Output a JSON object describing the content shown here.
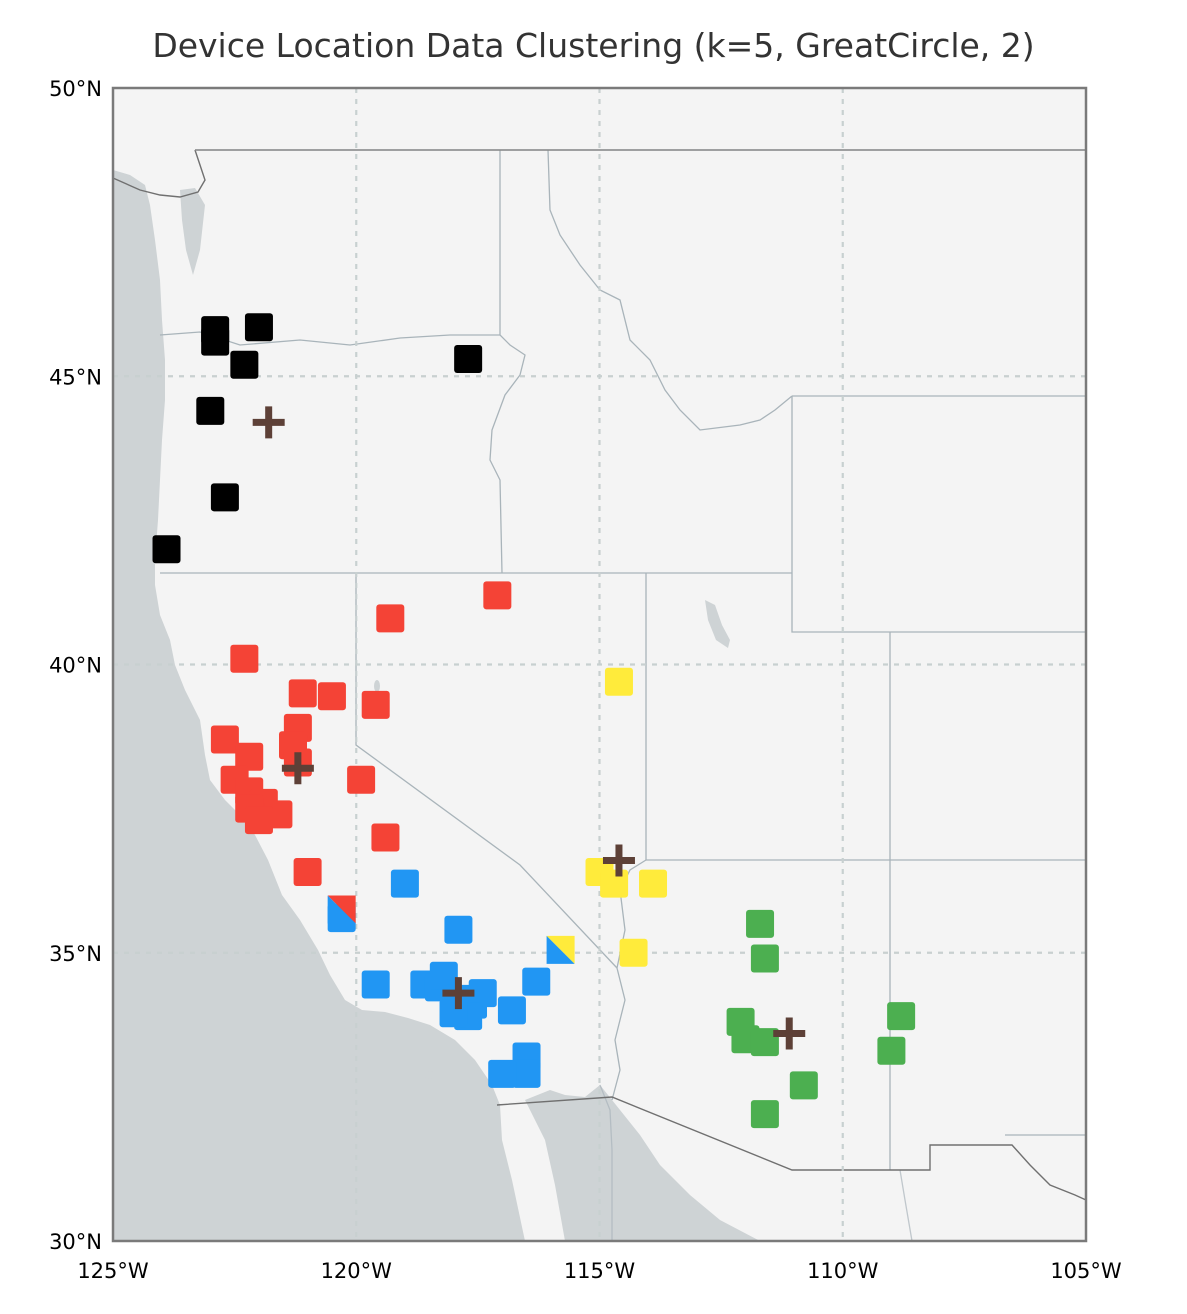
{
  "title": "Device Location Data Clustering (k=5, GreatCircle, 2)",
  "colors": {
    "ocean": "#ced3d5",
    "land": "#f4f4f4",
    "state_border": "#a9b4ba",
    "country_border": "#707070",
    "frame": "#7a7a7a",
    "grid": "#c8d0d0",
    "centroid": "#5d4037"
  },
  "chart_data": {
    "type": "scatter",
    "projection": "PlateCarree",
    "xlim": [
      -125,
      -105
    ],
    "ylim": [
      30,
      50
    ],
    "grid": true,
    "x_ticks": [
      {
        "value": -125,
        "label": "125°W"
      },
      {
        "value": -120,
        "label": "120°W"
      },
      {
        "value": -115,
        "label": "115°W"
      },
      {
        "value": -110,
        "label": "110°W"
      },
      {
        "value": -105,
        "label": "105°W"
      }
    ],
    "y_ticks": [
      {
        "value": 30,
        "label": "30°N"
      },
      {
        "value": 35,
        "label": "35°N"
      },
      {
        "value": 40,
        "label": "40°N"
      },
      {
        "value": 45,
        "label": "45°N"
      },
      {
        "value": 50,
        "label": "50°N"
      }
    ],
    "clusters": [
      {
        "color": "#000000",
        "centroid": [
          -121.8,
          44.2
        ],
        "points": [
          [
            -122.9,
            45.8
          ],
          [
            -122.9,
            45.6
          ],
          [
            -122.0,
            45.85
          ],
          [
            -122.3,
            45.2
          ],
          [
            -117.7,
            45.3
          ],
          [
            -123.0,
            44.4
          ],
          [
            -122.7,
            42.9
          ],
          [
            -123.9,
            42.0
          ]
        ]
      },
      {
        "color": "#f44336",
        "centroid": [
          -121.2,
          38.2
        ],
        "points": [
          [
            -117.1,
            41.2
          ],
          [
            -119.3,
            40.8
          ],
          [
            -122.3,
            40.1
          ],
          [
            -121.1,
            39.5
          ],
          [
            -120.5,
            39.45
          ],
          [
            -119.6,
            39.3
          ],
          [
            -121.2,
            38.9
          ],
          [
            -121.3,
            38.6
          ],
          [
            -122.7,
            38.7
          ],
          [
            -122.2,
            38.4
          ],
          [
            -121.2,
            38.3
          ],
          [
            -122.5,
            38.0
          ],
          [
            -122.2,
            37.8
          ],
          [
            -121.9,
            37.6
          ],
          [
            -122.2,
            37.5
          ],
          [
            -121.6,
            37.4
          ],
          [
            -122.0,
            37.3
          ],
          [
            -119.9,
            38.0
          ],
          [
            -119.4,
            37.0
          ],
          [
            -121.0,
            36.4
          ]
        ]
      },
      {
        "color": "#2196f3",
        "centroid": [
          -117.9,
          34.3
        ],
        "points": [
          [
            -119.0,
            36.2
          ],
          [
            -120.3,
            35.6
          ],
          [
            -117.9,
            35.4
          ],
          [
            -119.6,
            34.45
          ],
          [
            -118.6,
            34.45
          ],
          [
            -118.3,
            34.4
          ],
          [
            -118.2,
            34.6
          ],
          [
            -117.9,
            34.2
          ],
          [
            -117.6,
            34.1
          ],
          [
            -117.4,
            34.3
          ],
          [
            -117.7,
            33.9
          ],
          [
            -118.0,
            33.95
          ],
          [
            -116.3,
            34.5
          ],
          [
            -116.8,
            34.0
          ],
          [
            -116.5,
            33.2
          ],
          [
            -116.5,
            32.9
          ],
          [
            -117.0,
            32.9
          ],
          [
            -115.8,
            35.05
          ]
        ]
      },
      {
        "color": "#ffeb3b",
        "centroid": [
          -114.6,
          36.6
        ],
        "points": [
          [
            -114.6,
            39.7
          ],
          [
            -115.0,
            36.4
          ],
          [
            -114.7,
            36.2
          ],
          [
            -113.9,
            36.2
          ],
          [
            -114.3,
            35.0
          ]
        ]
      },
      {
        "color": "#4caf50",
        "centroid": [
          -111.1,
          33.6
        ],
        "points": [
          [
            -111.7,
            35.5
          ],
          [
            -111.6,
            34.9
          ],
          [
            -112.1,
            33.8
          ],
          [
            -112.0,
            33.5
          ],
          [
            -111.6,
            33.45
          ],
          [
            -108.8,
            33.9
          ],
          [
            -109.0,
            33.3
          ],
          [
            -110.8,
            32.7
          ],
          [
            -111.6,
            32.2
          ]
        ]
      }
    ],
    "split_points": [
      {
        "lon": -120.3,
        "lat": 35.75,
        "colors": [
          "#f44336",
          "#2196f3"
        ]
      },
      {
        "lon": -115.8,
        "lat": 35.05,
        "colors": [
          "#ffeb3b",
          "#2196f3"
        ]
      }
    ]
  }
}
